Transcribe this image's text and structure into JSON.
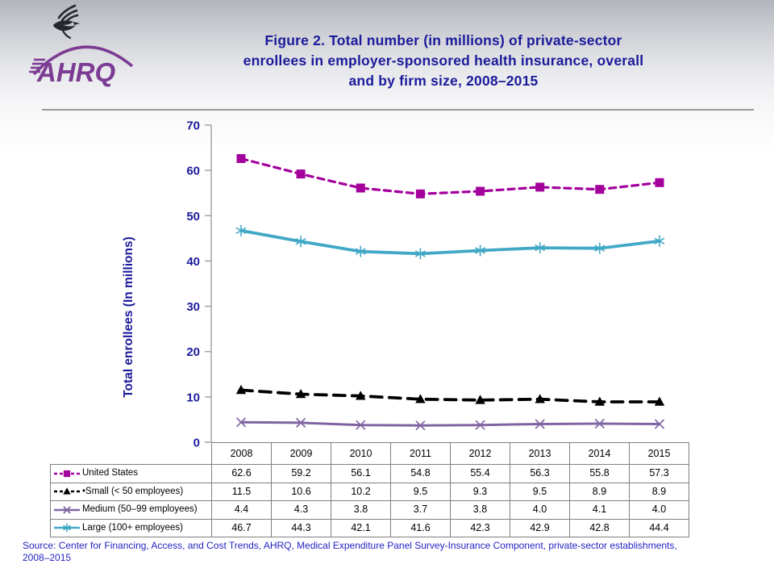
{
  "header": {
    "logo_text": "AHRQ",
    "logo_icon": "hhs-eagle-icon",
    "title_lines": [
      "Figure 2. Total number (in millions) of private-sector",
      "enrollees in employer-sponsored health insurance, overall",
      "and by firm size, 2008–2015"
    ]
  },
  "footer": {
    "line1": "Source: Center for Financing, Access, and Cost Trends, AHRQ, Medical Expenditure Panel Survey-Insurance Component, private-sector establishments,",
    "line2": "2008–2015"
  },
  "colors": {
    "title_navy": "#1B1B9B",
    "source_blue": "#2424C3",
    "logo_purple": "#7D3C94",
    "axis_gray": "#9a9fa3",
    "table_border": "#7f7f7f"
  },
  "chart_data": {
    "type": "line",
    "title": "Figure 2. Total number (in millions) of private-sector enrollees in employer-sponsored health insurance, overall and by firm size, 2008–2015",
    "ylabel": "Total enrollees (In millions)",
    "xlabel": "",
    "ylim": [
      0,
      70
    ],
    "ytick_step": 10,
    "grid": false,
    "legend_position": "table rows, left of data columns",
    "categories": [
      "2008",
      "2009",
      "2010",
      "2011",
      "2012",
      "2013",
      "2014",
      "2015"
    ],
    "series": [
      {
        "id": "united-states",
        "name": "United States",
        "values": [
          62.6,
          59.2,
          56.1,
          54.8,
          55.4,
          56.3,
          55.8,
          57.3
        ],
        "color": "#A3009C",
        "line_style": "dashed",
        "dash": "8 6",
        "width": 3.2,
        "marker": "square"
      },
      {
        "id": "small",
        "name": "•Small (< 50 employees)",
        "values": [
          11.5,
          10.6,
          10.2,
          9.5,
          9.3,
          9.5,
          8.9,
          8.9
        ],
        "color": "#000000",
        "line_style": "dashed",
        "dash": "14 9",
        "width": 3.8,
        "marker": "triangle"
      },
      {
        "id": "medium",
        "name": "Medium (50–99 employees)",
        "values": [
          4.4,
          4.3,
          3.8,
          3.7,
          3.8,
          4.0,
          4.1,
          4.0
        ],
        "color": "#8064A2",
        "line_style": "solid",
        "dash": "",
        "width": 3.0,
        "marker": "x"
      },
      {
        "id": "large",
        "name": "Large (100+ employees)",
        "values": [
          46.7,
          44.3,
          42.1,
          41.6,
          42.3,
          42.9,
          42.8,
          44.4
        ],
        "color": "#41A8C6",
        "line_style": "solid",
        "dash": "",
        "width": 3.8,
        "marker": "asterisk"
      }
    ]
  }
}
